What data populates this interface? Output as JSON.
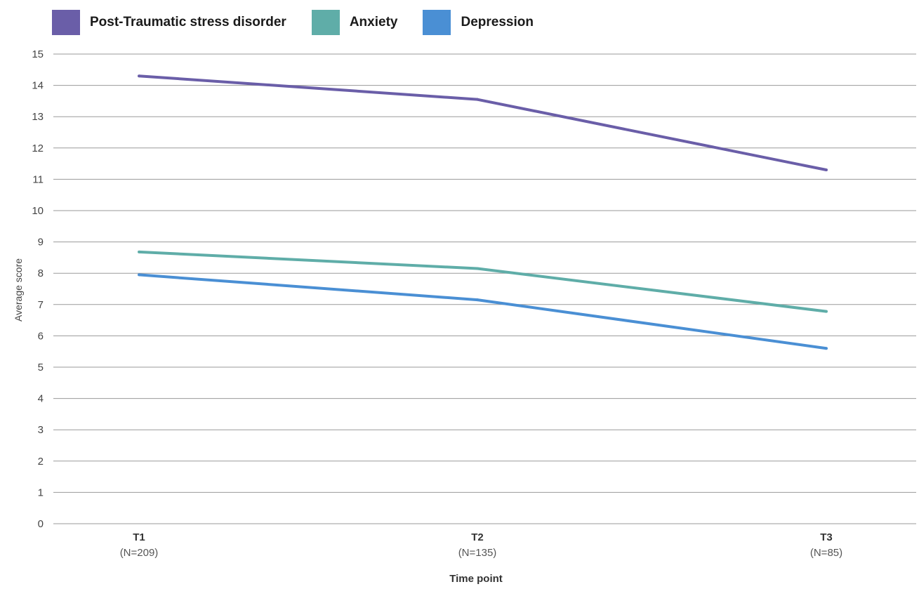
{
  "chart_data": {
    "type": "line",
    "title": "",
    "xlabel": "Time point",
    "ylabel": "Average score",
    "ylim": [
      0,
      15
    ],
    "yticks": [
      "0",
      "1",
      "2",
      "3",
      "4",
      "5",
      "6",
      "7",
      "8",
      "9",
      "10",
      "11",
      "12",
      "13",
      "14",
      "15"
    ],
    "grid": true,
    "legend_position": "top-left",
    "categories": [
      "T1",
      "T2",
      "T3"
    ],
    "category_sublabels": [
      "(N=209)",
      "(N=135)",
      "(N=85)"
    ],
    "series": [
      {
        "name": "Post-Traumatic stress disorder",
        "color": "#6a5ea8",
        "values": [
          14.3,
          13.55,
          11.3
        ]
      },
      {
        "name": "Anxiety",
        "color": "#5fada8",
        "values": [
          8.68,
          8.15,
          6.78
        ]
      },
      {
        "name": "Depression",
        "color": "#4a8fd4",
        "values": [
          7.95,
          7.15,
          5.6
        ]
      }
    ]
  }
}
